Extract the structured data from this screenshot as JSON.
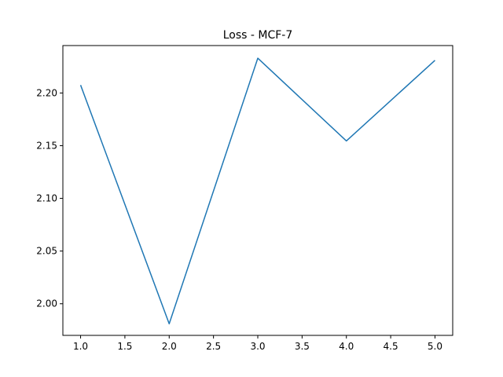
{
  "chart_data": {
    "type": "line",
    "title": "Loss - MCF-7",
    "xlabel": "",
    "ylabel": "",
    "x": [
      1.0,
      2.0,
      3.0,
      4.0,
      5.0
    ],
    "series": [
      {
        "values": [
          2.2075,
          1.981,
          2.233,
          2.1545,
          2.231
        ],
        "color": "#1f77b4"
      }
    ],
    "xlim": [
      0.8,
      5.2
    ],
    "ylim": [
      1.97,
      2.245
    ],
    "x_ticks": [
      1.0,
      1.5,
      2.0,
      2.5,
      3.0,
      3.5,
      4.0,
      4.5,
      5.0
    ],
    "x_tick_labels": [
      "1.0",
      "1.5",
      "2.0",
      "2.5",
      "3.0",
      "3.5",
      "4.0",
      "4.5",
      "5.0"
    ],
    "y_ticks": [
      2.0,
      2.05,
      2.1,
      2.15,
      2.2
    ],
    "y_tick_labels": [
      "2.00",
      "2.05",
      "2.10",
      "2.15",
      "2.20"
    ],
    "grid": false,
    "legend": false
  }
}
